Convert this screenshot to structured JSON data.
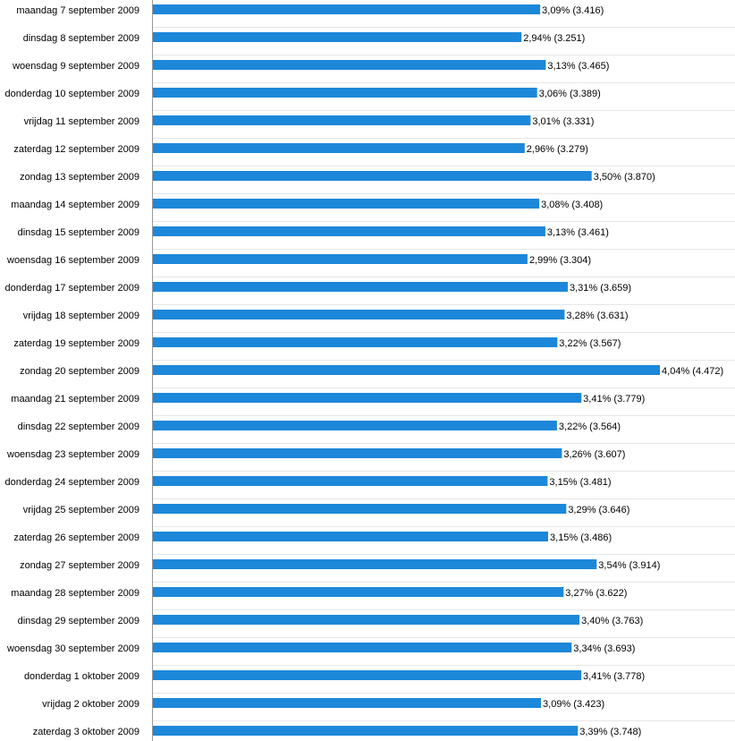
{
  "chart_data": {
    "type": "bar",
    "orientation": "horizontal",
    "bar_color": "#1d87d9",
    "grid": true,
    "categories": [
      "maandag 7 september 2009",
      "dinsdag 8 september 2009",
      "woensdag 9 september 2009",
      "donderdag 10 september 2009",
      "vrijdag 11 september 2009",
      "zaterdag 12 september 2009",
      "zondag 13 september 2009",
      "maandag 14 september 2009",
      "dinsdag 15 september 2009",
      "woensdag 16 september 2009",
      "donderdag 17 september 2009",
      "vrijdag 18 september 2009",
      "zaterdag 19 september 2009",
      "zondag 20 september 2009",
      "maandag 21 september 2009",
      "dinsdag 22 september 2009",
      "woensdag 23 september 2009",
      "donderdag 24 september 2009",
      "vrijdag 25 september 2009",
      "zaterdag 26 september 2009",
      "zondag 27 september 2009",
      "maandag 28 september 2009",
      "dinsdag 29 september 2009",
      "woensdag 30 september 2009",
      "donderdag 1 oktober 2009",
      "vrijdag 2 oktober 2009",
      "zaterdag 3 oktober 2009"
    ],
    "values": [
      3416,
      3251,
      3465,
      3389,
      3331,
      3279,
      3870,
      3408,
      3461,
      3304,
      3659,
      3631,
      3567,
      4472,
      3779,
      3564,
      3607,
      3481,
      3646,
      3486,
      3914,
      3622,
      3763,
      3693,
      3778,
      3423,
      3748
    ],
    "data_labels": [
      "3,09% (3.416)",
      "2,94% (3.251)",
      "3,13% (3.465)",
      "3,06% (3.389)",
      "3,01% (3.331)",
      "2,96% (3.279)",
      "3,50% (3.870)",
      "3,08% (3.408)",
      "3,13% (3.461)",
      "2,99% (3.304)",
      "3,31% (3.659)",
      "3,28% (3.631)",
      "3,22% (3.567)",
      "4,04% (4.472)",
      "3,41% (3.779)",
      "3,22% (3.564)",
      "3,26% (3.607)",
      "3,15% (3.481)",
      "3,29% (3.646)",
      "3,15% (3.486)",
      "3,54% (3.914)",
      "3,27% (3.622)",
      "3,40% (3.763)",
      "3,34% (3.693)",
      "3,41% (3.778)",
      "3,09% (3.423)",
      "3,39% (3.748)"
    ],
    "xlim": [
      0,
      4472
    ]
  }
}
